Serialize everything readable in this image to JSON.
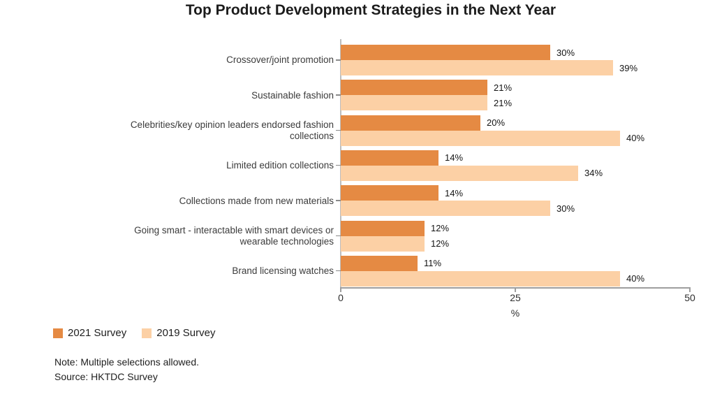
{
  "title": "Top Product Development Strategies in the Next Year",
  "chart_data": {
    "type": "bar",
    "orientation": "horizontal",
    "title": "Top Product Development Strategies in the Next Year",
    "categories": [
      "Crossover/joint promotion",
      "Sustainable fashion",
      "Celebrities/key opinion leaders endorsed fashion collections",
      "Limited edition collections",
      "Collections made from new materials",
      "Going smart - interactable with smart devices or wearable technologies",
      "Brand licensing watches"
    ],
    "series": [
      {
        "name": "2021 Survey",
        "color": "#E58A43",
        "values": [
          30,
          21,
          20,
          14,
          14,
          12,
          11
        ]
      },
      {
        "name": "2019 Survey",
        "color": "#FCD0A5",
        "values": [
          39,
          21,
          40,
          34,
          30,
          12,
          40
        ]
      }
    ],
    "value_suffix": "%",
    "xlabel": "%",
    "x_ticks": [
      0,
      25,
      50
    ],
    "xlim": [
      0,
      50
    ],
    "grid": false,
    "legend_position": "bottom-left",
    "data_labels": true
  },
  "notes": {
    "note": "Note: Multiple selections allowed.",
    "source": "Source: HKTDC Survey"
  }
}
